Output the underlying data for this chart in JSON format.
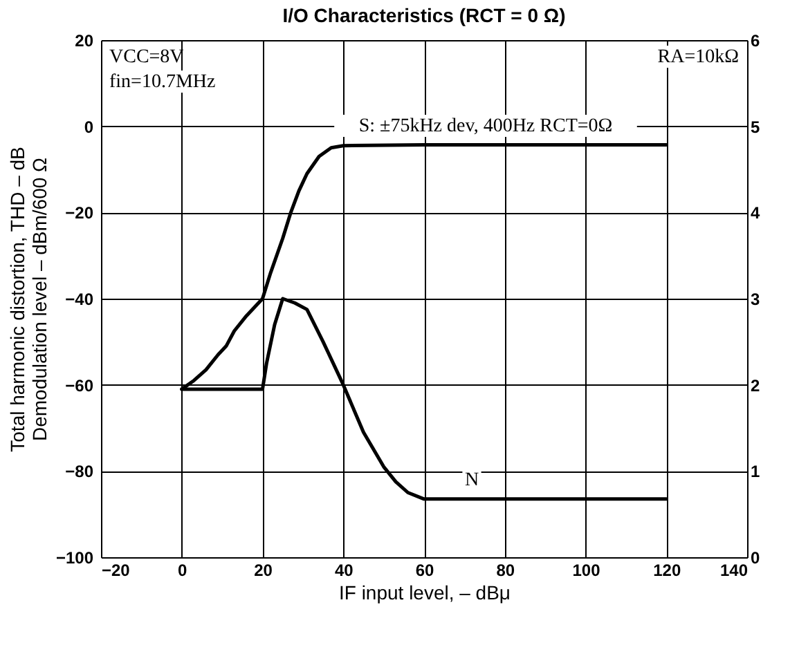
{
  "chart_data": {
    "type": "line",
    "title": "I/O Characteristics (RCT = 0 Ω)",
    "xlabel": "IF input level, – dBμ",
    "ylabel": "Total harmonic distortion, THD – dB\nDemodulation level – dBm/600 Ω",
    "xlim": [
      -20,
      140
    ],
    "xticks": [
      -20,
      0,
      20,
      40,
      60,
      80,
      100,
      120,
      140
    ],
    "ylim": [
      -100,
      20
    ],
    "yticks": [
      -100,
      -80,
      -60,
      -40,
      -20,
      0,
      20
    ],
    "y2lim": [
      0,
      6
    ],
    "y2ticks": [
      0,
      1,
      2,
      3,
      4,
      5,
      6
    ],
    "grid": true,
    "legend": false,
    "marker": "none",
    "line_style": "solid",
    "series": [
      {
        "color": "#000000",
        "x": [
          0,
          3,
          6,
          9,
          11,
          13,
          16,
          20,
          22,
          25,
          27,
          29,
          31,
          34,
          37,
          40,
          60,
          80,
          100,
          120
        ],
        "values": [
          -61,
          -59,
          -56.5,
          -53,
          -51,
          -47.5,
          -44,
          -40,
          -34,
          -26,
          -20,
          -15,
          -11,
          -7,
          -5,
          -4.5,
          -4.3,
          -4.3,
          -4.3,
          -4.3
        ]
      },
      {
        "color": "#000000",
        "x": [
          0,
          10,
          20,
          21,
          23,
          25,
          28,
          31,
          35,
          40,
          45,
          50,
          53,
          56,
          60,
          80,
          100,
          120
        ],
        "values": [
          -61,
          -61,
          -61,
          -55,
          -46,
          -40,
          -41,
          -42.5,
          -50,
          -60,
          -71,
          -79,
          -82.5,
          -85,
          -86.5,
          -86.5,
          -86.5,
          -86.5
        ]
      }
    ],
    "annotations": [
      "VCC=8V",
      "fin=10.7MHz",
      "RA=10kΩ",
      "S: ±75kHz dev, 400Hz  RCT=0Ω",
      "N"
    ]
  }
}
